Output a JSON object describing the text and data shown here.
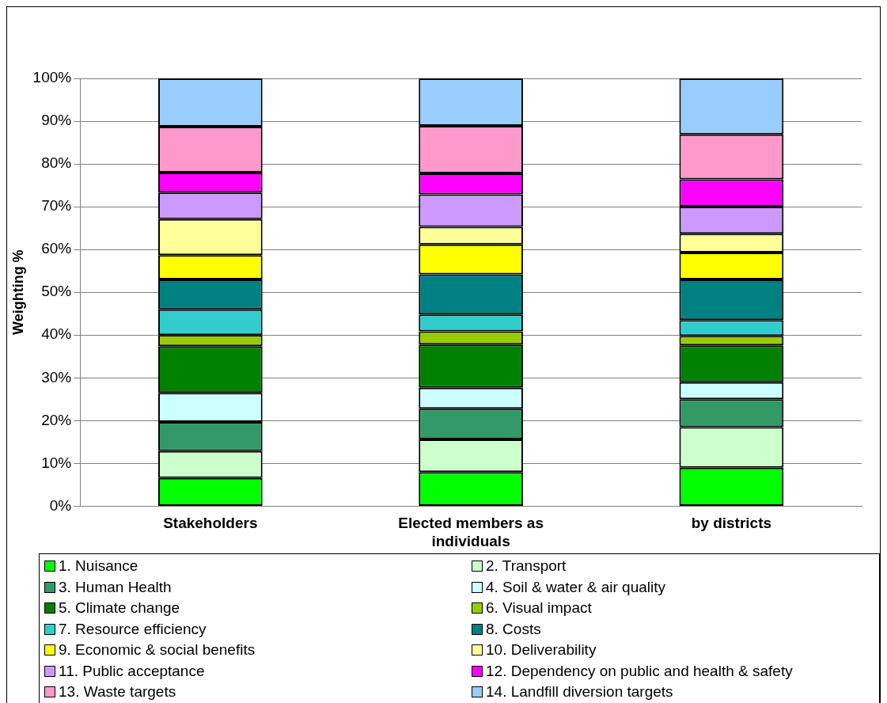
{
  "chart_data": {
    "type": "bar",
    "stacked": true,
    "ylabel": "Weighting %",
    "categories": [
      "Stakeholders",
      "Elected members as individuals",
      "by districts"
    ],
    "ylim": [
      0,
      100
    ],
    "yticks": [
      {
        "value": 0,
        "label": "0%"
      },
      {
        "value": 10,
        "label": "10%"
      },
      {
        "value": 20,
        "label": "20%"
      },
      {
        "value": 30,
        "label": "30%"
      },
      {
        "value": 40,
        "label": "40%"
      },
      {
        "value": 50,
        "label": "50%"
      },
      {
        "value": 60,
        "label": "60%"
      },
      {
        "value": 70,
        "label": "70%"
      },
      {
        "value": 80,
        "label": "80%"
      },
      {
        "value": 90,
        "label": "90%"
      },
      {
        "value": 100,
        "label": "100%"
      }
    ],
    "grid": "y",
    "legend": "bottom",
    "series": [
      {
        "name": "1. Nuisance",
        "color": "#00ff00",
        "values": [
          6.6,
          8.0,
          9.0
        ]
      },
      {
        "name": "2. Transport",
        "color": "#ccffcc",
        "values": [
          6.3,
          7.6,
          9.5
        ]
      },
      {
        "name": "3. Human Health",
        "color": "#339966",
        "values": [
          6.8,
          7.2,
          6.5
        ]
      },
      {
        "name": "4. Soil & water & air quality",
        "color": "#ccffff",
        "values": [
          6.8,
          4.9,
          4.0
        ]
      },
      {
        "name": "5. Climate change",
        "color": "#008000",
        "values": [
          10.9,
          10.1,
          8.6
        ]
      },
      {
        "name": "6. Visual impact",
        "color": "#99cc00",
        "values": [
          2.6,
          3.1,
          2.2
        ]
      },
      {
        "name": "7. Resource efficiency",
        "color": "#33cccc",
        "values": [
          6.0,
          3.9,
          3.7
        ]
      },
      {
        "name": "8. Costs",
        "color": "#008080",
        "values": [
          7.0,
          9.4,
          9.5
        ]
      },
      {
        "name": "9. Economic & social benefits",
        "color": "#ffff00",
        "values": [
          5.7,
          7.0,
          6.3
        ]
      },
      {
        "name": "10. Deliverability",
        "color": "#ffff99",
        "values": [
          8.4,
          4.1,
          4.4
        ]
      },
      {
        "name": "11. Public acceptance",
        "color": "#cc99ff",
        "values": [
          6.2,
          7.6,
          6.3
        ]
      },
      {
        "name": "12. Dependency on public and health & safety",
        "color": "#ff00ff",
        "values": [
          4.7,
          4.9,
          6.4
        ]
      },
      {
        "name": "13. Waste targets",
        "color": "#ff99cc",
        "values": [
          10.7,
          11.1,
          10.5
        ]
      },
      {
        "name": "14. Landfill diversion targets",
        "color": "#99ccff",
        "values": [
          11.3,
          11.1,
          13.1
        ]
      }
    ]
  }
}
